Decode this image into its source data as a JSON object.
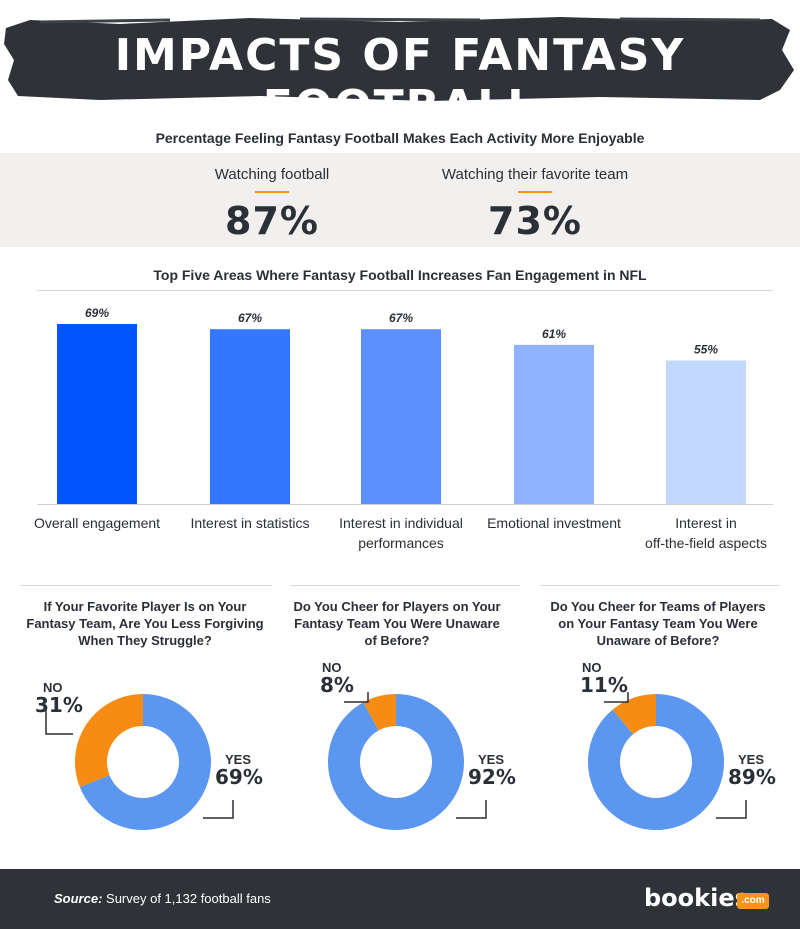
{
  "header": {
    "title": "IMPACTS OF FANTASY FOOTBALL"
  },
  "enjoyable": {
    "title": "Percentage Feeling Fantasy Football Makes Each Activity More Enjoyable",
    "stats": [
      {
        "label": "Watching football",
        "value": "87%"
      },
      {
        "label": "Watching their favorite team",
        "value": "73%"
      }
    ]
  },
  "engagement": {
    "title": "Top Five Areas Where Fantasy Football Increases Fan Engagement in NFL",
    "cat_lines": [
      [
        "Overall engagement"
      ],
      [
        "Interest in statistics"
      ],
      [
        "Interest in individual",
        "performances"
      ],
      [
        "Emotional investment"
      ],
      [
        "Interest in",
        "off-the-field aspects"
      ]
    ]
  },
  "chart_data": [
    {
      "type": "bar",
      "title": "Top Five Areas Where Fantasy Football Increases Fan Engagement in NFL",
      "categories": [
        "Overall engagement",
        "Interest in statistics",
        "Interest in individual performances",
        "Emotional investment",
        "Interest in off-the-field aspects"
      ],
      "values": [
        69,
        67,
        67,
        61,
        55
      ],
      "value_labels": [
        "69%",
        "67%",
        "67%",
        "61%",
        "55%"
      ],
      "bar_colors": [
        "#0055ff",
        "#3377ff",
        "#5c8fff",
        "#8fb3ff",
        "#c2d8ff"
      ],
      "ylim": [
        0,
        69
      ],
      "grid": false
    },
    {
      "type": "pie",
      "title": "If Your Favorite Player Is on Your Fantasy Team, Are You Less Forgiving When They Struggle?",
      "labels": [
        "YES",
        "NO"
      ],
      "values": [
        69,
        31
      ],
      "value_labels": [
        "69%",
        "31%"
      ],
      "colors": [
        "#5b96f0",
        "#f68c13"
      ]
    },
    {
      "type": "pie",
      "title": "Do You Cheer for Players on Your Fantasy Team You Were Unaware of Before?",
      "labels": [
        "YES",
        "NO"
      ],
      "values": [
        92,
        8
      ],
      "value_labels": [
        "92%",
        "8%"
      ],
      "colors": [
        "#5b96f0",
        "#f68c13"
      ]
    },
    {
      "type": "pie",
      "title": "Do You Cheer for Teams of Players on Your Fantasy Team You Were Unaware of Before?",
      "labels": [
        "YES",
        "NO"
      ],
      "values": [
        89,
        11
      ],
      "value_labels": [
        "89%",
        "11%"
      ],
      "colors": [
        "#5b96f0",
        "#f68c13"
      ]
    }
  ],
  "questions": [
    {
      "title_lines": [
        "If Your Favorite Player Is on Your",
        "Fantasy Team, Are You Less Forgiving",
        "When They Struggle?"
      ]
    },
    {
      "title_lines": [
        "Do You Cheer for Players on Your",
        "Fantasy Team You Were Unaware",
        "of Before?"
      ]
    },
    {
      "title_lines": [
        "Do You Cheer for Teams of Players",
        "on Your Fantasy Team You Were",
        "Unaware of Before?"
      ]
    }
  ],
  "footer": {
    "source_label": "Source:",
    "source_text": "Survey of 1,132 football fans",
    "logo_text": "bookies",
    "logo_suffix": ".com"
  },
  "colors": {
    "accent": "#f7941d",
    "dark": "#2f3237",
    "yes": "#5b96f0",
    "no": "#f68c13"
  }
}
